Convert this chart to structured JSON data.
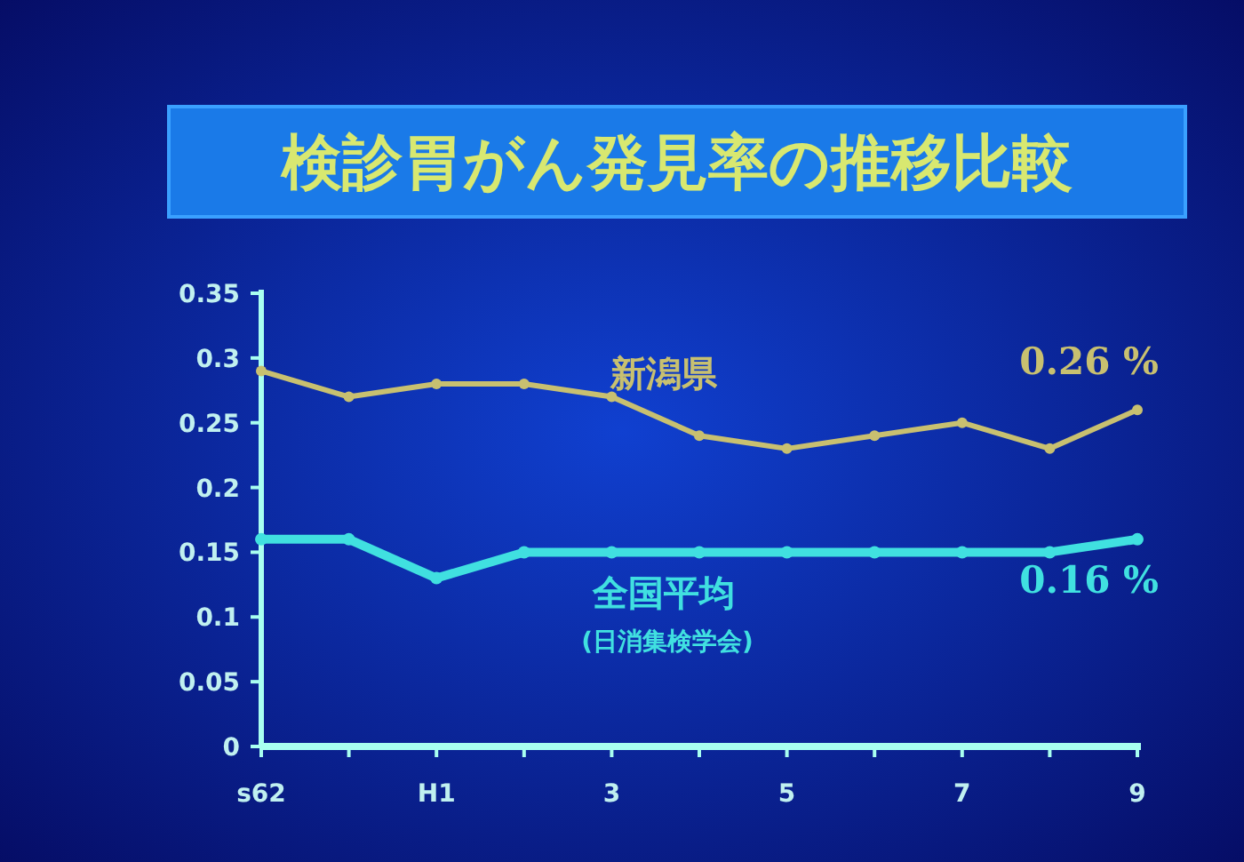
{
  "chart_data": {
    "type": "line",
    "title": "検診胃がん発見率の推移比較",
    "categories": [
      "s62",
      null,
      "H1",
      null,
      "3",
      null,
      "5",
      null,
      "7",
      null,
      "9"
    ],
    "series": [
      {
        "name": "新潟県",
        "color": "#c8c070",
        "values": [
          0.29,
          0.27,
          0.28,
          0.28,
          0.27,
          0.24,
          0.23,
          0.24,
          0.25,
          0.23,
          0.26
        ],
        "value_labels": [
          null,
          null,
          null,
          null,
          null,
          null,
          null,
          null,
          null,
          null,
          "0.26 %"
        ]
      },
      {
        "name": "全国平均",
        "color": "#40e0e0",
        "values": [
          0.16,
          0.16,
          0.13,
          0.15,
          0.15,
          0.15,
          0.15,
          0.15,
          0.15,
          0.15,
          0.16
        ],
        "value_labels": [
          null,
          null,
          null,
          null,
          null,
          null,
          null,
          null,
          null,
          null,
          "0.16 %"
        ]
      }
    ],
    "annotations": [
      "(日消集検学会)"
    ],
    "ylim": [
      0,
      0.35
    ],
    "yticks": [
      0,
      0.05,
      0.1,
      0.15,
      0.2,
      0.25,
      0.3,
      0.35
    ],
    "grid": false,
    "marker": "circle",
    "line_style": "solid"
  }
}
